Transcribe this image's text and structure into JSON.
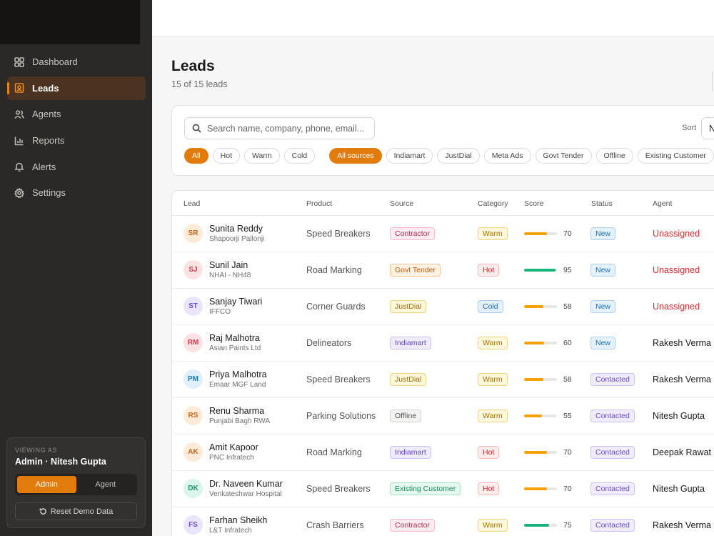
{
  "sidebar": {
    "nav": [
      {
        "label": "Dashboard",
        "icon": "grid-icon"
      },
      {
        "label": "Leads",
        "icon": "contact-card-icon",
        "active": true
      },
      {
        "label": "Agents",
        "icon": "users-icon"
      },
      {
        "label": "Reports",
        "icon": "bar-chart-icon"
      },
      {
        "label": "Alerts",
        "icon": "bell-icon"
      },
      {
        "label": "Settings",
        "icon": "gear-icon"
      }
    ],
    "viewing": {
      "label": "VIEWING AS",
      "who": "Admin · Nitesh Gupta",
      "roles": [
        "Admin",
        "Agent"
      ],
      "active_role": "Admin",
      "reset_label": "Reset Demo Data"
    }
  },
  "page": {
    "title": "Leads",
    "subtitle": "15 of 15 leads"
  },
  "filters": {
    "search_placeholder": "Search name, company, phone, email...",
    "sort_label": "Sort",
    "sort_value": "N",
    "category_chips": [
      "All",
      "Hot",
      "Warm",
      "Cold"
    ],
    "category_active": "All",
    "source_chips": [
      "All sources",
      "Indiamart",
      "JustDial",
      "Meta Ads",
      "Govt Tender",
      "Offline",
      "Existing Customer"
    ],
    "source_active": "All sources"
  },
  "table": {
    "headers": [
      "Lead",
      "Product",
      "Source",
      "Category",
      "Score",
      "Status",
      "Agent"
    ],
    "rows": [
      {
        "initials": "SR",
        "name": "Sunita Reddy",
        "company": "Shapoorji Pallonji",
        "product": "Speed Breakers",
        "source": "Contractor",
        "category": "Warm",
        "score": "70",
        "status": "New",
        "agent": "Unassigned"
      },
      {
        "initials": "SJ",
        "name": "Sunil Jain",
        "company": "NHAI - NH48",
        "product": "Road Marking",
        "source": "Govt Tender",
        "category": "Hot",
        "score": "95",
        "status": "New",
        "agent": "Unassigned"
      },
      {
        "initials": "ST",
        "name": "Sanjay Tiwari",
        "company": "IFFCO",
        "product": "Corner Guards",
        "source": "JustDial",
        "category": "Cold",
        "score": "58",
        "status": "New",
        "agent": "Unassigned"
      },
      {
        "initials": "RM",
        "name": "Raj Malhotra",
        "company": "Asian Paints Ltd",
        "product": "Delineators",
        "source": "Indiamart",
        "category": "Warm",
        "score": "60",
        "status": "New",
        "agent": "Rakesh Verma"
      },
      {
        "initials": "PM",
        "name": "Priya Malhotra",
        "company": "Emaar MGF Land",
        "product": "Speed Breakers",
        "source": "JustDial",
        "category": "Warm",
        "score": "58",
        "status": "Contacted",
        "agent": "Rakesh Verma"
      },
      {
        "initials": "RS",
        "name": "Renu Sharma",
        "company": "Punjabi Bagh RWA",
        "product": "Parking Solutions",
        "source": "Offline",
        "category": "Warm",
        "score": "55",
        "status": "Contacted",
        "agent": "Nitesh Gupta"
      },
      {
        "initials": "AK",
        "name": "Amit Kapoor",
        "company": "PNC Infratech",
        "product": "Road Marking",
        "source": "Indiamart",
        "category": "Hot",
        "score": "70",
        "status": "Contacted",
        "agent": "Deepak Rawat"
      },
      {
        "initials": "DK",
        "name": "Dr. Naveen Kumar",
        "company": "Venkateshwar Hospital",
        "product": "Speed Breakers",
        "source": "Existing Customer",
        "category": "Hot",
        "score": "70",
        "status": "Contacted",
        "agent": "Nitesh Gupta"
      },
      {
        "initials": "FS",
        "name": "Farhan Sheikh",
        "company": "L&T Infratech",
        "product": "Crash Barriers",
        "source": "Contractor",
        "category": "Warm",
        "score": "75",
        "status": "Contacted",
        "agent": "Rakesh Verma"
      }
    ]
  },
  "colors": {
    "accent": "#e07b0c",
    "score_high": "#16b37a",
    "score_mid": "#f5a20a",
    "unassigned": "#d22c2c"
  }
}
